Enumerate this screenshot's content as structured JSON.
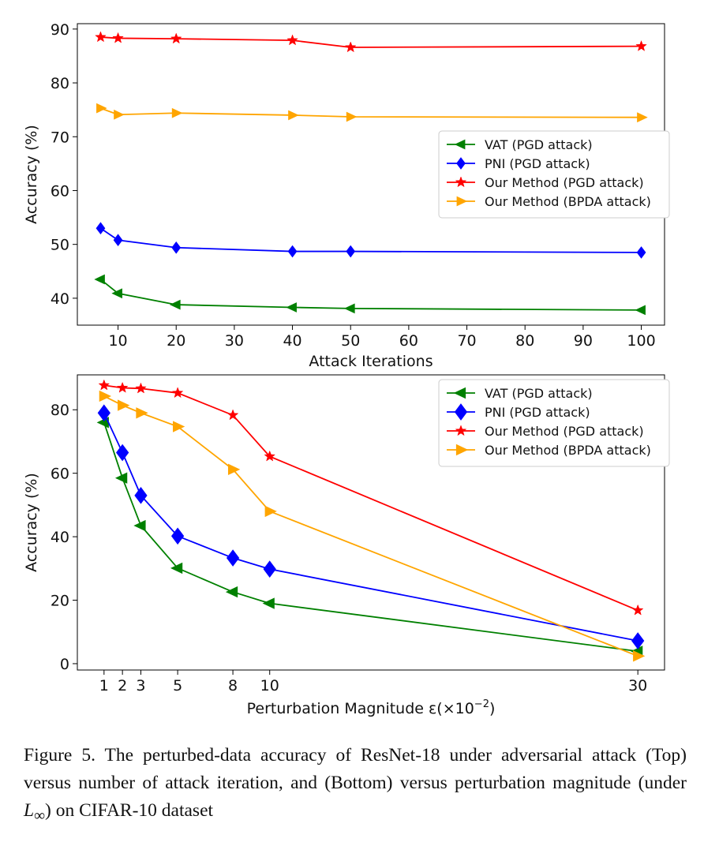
{
  "chart_data": [
    {
      "type": "line",
      "panel": "top",
      "title": "",
      "xlabel": "Attack Iterations",
      "ylabel": "Accuracy (%)",
      "xlim": [
        3,
        104
      ],
      "ylim": [
        35,
        91
      ],
      "xticks": [
        10,
        20,
        30,
        40,
        50,
        60,
        70,
        80,
        90,
        100
      ],
      "yticks": [
        40,
        50,
        60,
        70,
        80,
        90
      ],
      "legend_position": "center-right",
      "series": [
        {
          "name": "VAT (PGD attack)",
          "color": "#008000",
          "marker": "triangle-left",
          "x": [
            7,
            10,
            20,
            40,
            50,
            100
          ],
          "y": [
            43.5,
            40.9,
            38.8,
            38.3,
            38.1,
            37.8
          ]
        },
        {
          "name": "PNI (PGD attack)",
          "color": "#0000ff",
          "marker": "diamond",
          "x": [
            7,
            10,
            20,
            40,
            50,
            100
          ],
          "y": [
            53.0,
            50.8,
            49.4,
            48.7,
            48.7,
            48.5
          ]
        },
        {
          "name": "Our Method (PGD attack)",
          "color": "#ff0000",
          "marker": "star",
          "x": [
            7,
            10,
            20,
            40,
            50,
            100
          ],
          "y": [
            88.5,
            88.3,
            88.2,
            87.9,
            86.6,
            86.8
          ]
        },
        {
          "name": "Our Method (BPDA attack)",
          "color": "#ffa500",
          "marker": "triangle-right",
          "x": [
            7,
            10,
            20,
            40,
            50,
            100
          ],
          "y": [
            75.3,
            74.1,
            74.4,
            74.0,
            73.7,
            73.6
          ]
        }
      ]
    },
    {
      "type": "line",
      "panel": "bottom",
      "title": "",
      "xlabel": "Perturbation Magnitude ε(×10⁻²)",
      "xlabel_main": "Perturbation Magnitude ε(×10",
      "xlabel_exp": "−2",
      "xlabel_end": ")",
      "ylabel": "Accuracy (%)",
      "xlim": [
        -0.45,
        31.45
      ],
      "ylim": [
        -2,
        91
      ],
      "xticks": [
        1,
        2,
        3,
        5,
        8,
        10,
        30
      ],
      "yticks": [
        0,
        20,
        40,
        60,
        80
      ],
      "legend_position": "top-right",
      "series": [
        {
          "name": "VAT (PGD attack)",
          "color": "#008000",
          "marker": "triangle-left",
          "x": [
            1,
            2,
            3,
            5,
            8,
            10,
            30
          ],
          "y": [
            76.0,
            58.5,
            43.5,
            30.1,
            22.6,
            19.0,
            3.9
          ]
        },
        {
          "name": "PNI (PGD attack)",
          "color": "#0000ff",
          "marker": "diamond",
          "x": [
            1,
            2,
            3,
            5,
            8,
            10,
            30
          ],
          "y": [
            79.0,
            66.5,
            53.0,
            40.2,
            33.3,
            29.8,
            7.2
          ]
        },
        {
          "name": "Our Method (PGD attack)",
          "color": "#ff0000",
          "marker": "star",
          "x": [
            1,
            2,
            3,
            5,
            8,
            10,
            30
          ],
          "y": [
            87.7,
            86.9,
            86.7,
            85.3,
            78.3,
            65.3,
            16.8
          ]
        },
        {
          "name": "Our Method (BPDA attack)",
          "color": "#ffa500",
          "marker": "triangle-right",
          "x": [
            1,
            2,
            3,
            5,
            8,
            10,
            30
          ],
          "y": [
            84.3,
            81.4,
            79.0,
            74.7,
            61.2,
            48.0,
            2.4
          ]
        }
      ]
    }
  ],
  "caption": {
    "text_before": "Figure 5.  The perturbed-data accuracy of ResNet-18 under adversarial attack (Top) versus number of attack iteration, and (Bottom) versus perturbation magnitude (under ",
    "math_L": "L",
    "math_sub": "∞",
    "text_after": ") on CIFAR-10 dataset"
  }
}
